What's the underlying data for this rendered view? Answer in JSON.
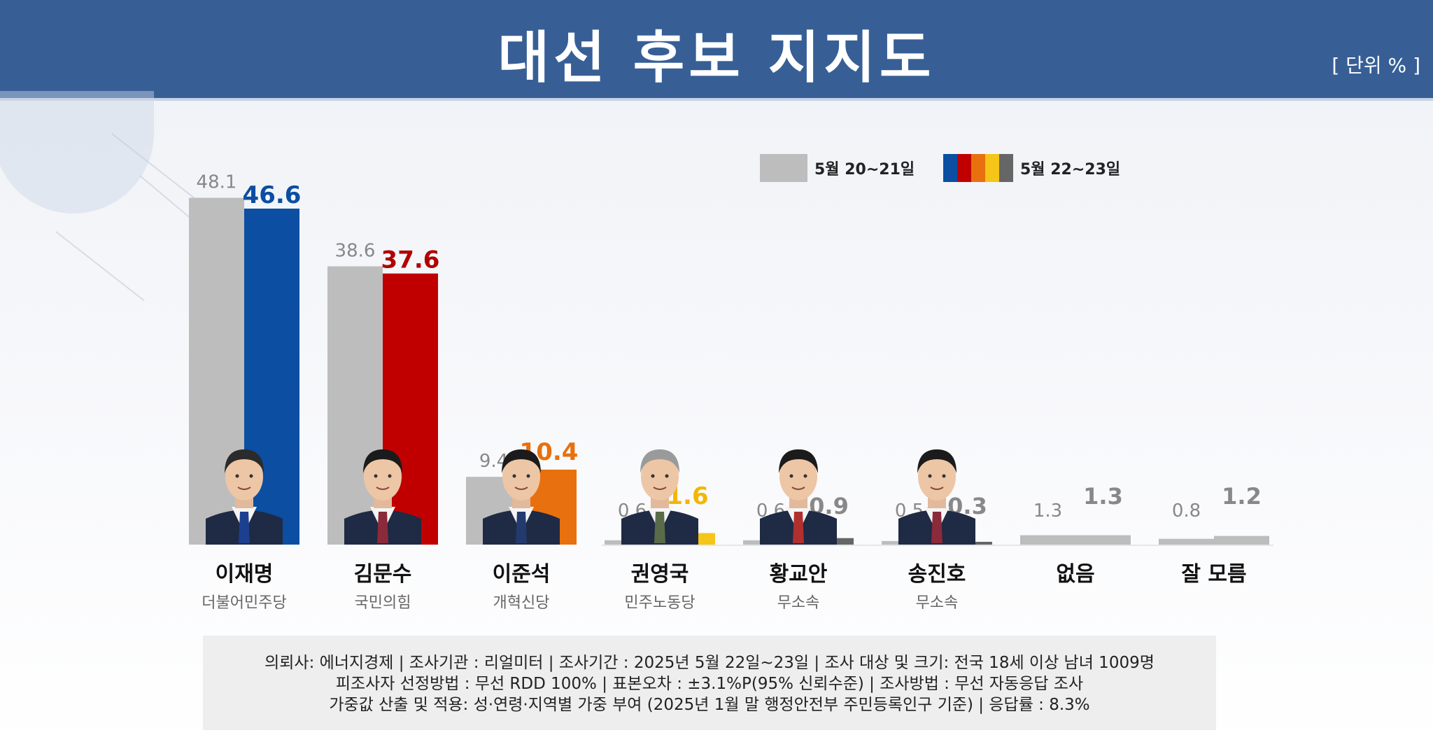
{
  "header": {
    "title": "대선 후보 지지도",
    "unit": "[ 단위 % ]"
  },
  "legend": {
    "previous": {
      "label": "5월 20~21일",
      "color": "#bdbdbd"
    },
    "current": {
      "label": "5월 22~23일",
      "colors": [
        "#0b4ea2",
        "#c00000",
        "#e8700e",
        "#f5c518",
        "#666666"
      ]
    }
  },
  "chart_data": {
    "type": "bar",
    "title": "대선 후보 지지도",
    "unit": "%",
    "ylim": [
      0,
      50
    ],
    "grid": false,
    "legend_position": "top-right",
    "categories": [
      {
        "name": "이재명",
        "party": "더불어민주당",
        "photo": true
      },
      {
        "name": "김문수",
        "party": "국민의힘",
        "photo": true
      },
      {
        "name": "이준석",
        "party": "개혁신당",
        "photo": true
      },
      {
        "name": "권영국",
        "party": "민주노동당",
        "photo": true
      },
      {
        "name": "황교안",
        "party": "무소속",
        "photo": true
      },
      {
        "name": "송진호",
        "party": "무소속",
        "photo": true
      },
      {
        "name": "없음",
        "party": "",
        "photo": false
      },
      {
        "name": "잘 모름",
        "party": "",
        "photo": false
      }
    ],
    "series": [
      {
        "name": "5월 20~21일",
        "values": [
          48.1,
          38.6,
          9.4,
          0.6,
          0.6,
          0.5,
          1.3,
          0.8
        ],
        "labels": [
          "48.1",
          "38.6",
          "9.4",
          "0.6",
          "0.6",
          "0.5",
          "1.3",
          "0.8"
        ],
        "colors": [
          "#bdbdbd",
          "#bdbdbd",
          "#bdbdbd",
          "#bdbdbd",
          "#bdbdbd",
          "#bdbdbd",
          "#bdbdbd",
          "#bdbdbd"
        ]
      },
      {
        "name": "5월 22~23일",
        "values": [
          46.6,
          37.6,
          10.4,
          1.6,
          0.9,
          0.3,
          1.3,
          1.2
        ],
        "labels": [
          "46.6",
          "37.6",
          "10.4",
          "1.6",
          "0.9",
          "0.3",
          "1.3",
          "1.2"
        ],
        "colors": [
          "#0b4ea2",
          "#c00000",
          "#e8700e",
          "#f5c518",
          "#666666",
          "#666666",
          "#bdbdbd",
          "#bdbdbd"
        ],
        "label_colors": [
          "#0b4ea2",
          "#b00000",
          "#e8700e",
          "#f2b705",
          "#888888",
          "#888888",
          "#888888",
          "#888888"
        ]
      }
    ]
  },
  "footnote": {
    "line1": "의뢰사: 에너지경제 | 조사기관 : 리얼미터  |  조사기간 : 2025년 5월 22일~23일 | 조사 대상 및 크기: 전국 18세 이상 남녀 1009명",
    "line2": "피조사자 선정방법 : 무선 RDD 100% | 표본오차 : ±3.1%P(95% 신뢰수준) | 조사방법 : 무선 자동응답 조사",
    "line3": "가중값 산출 및 적용: 성·연령·지역별 가중 부여 (2025년 1월 말 행정안전부 주민등록인구 기준) | 응답률 : 8.3%"
  }
}
